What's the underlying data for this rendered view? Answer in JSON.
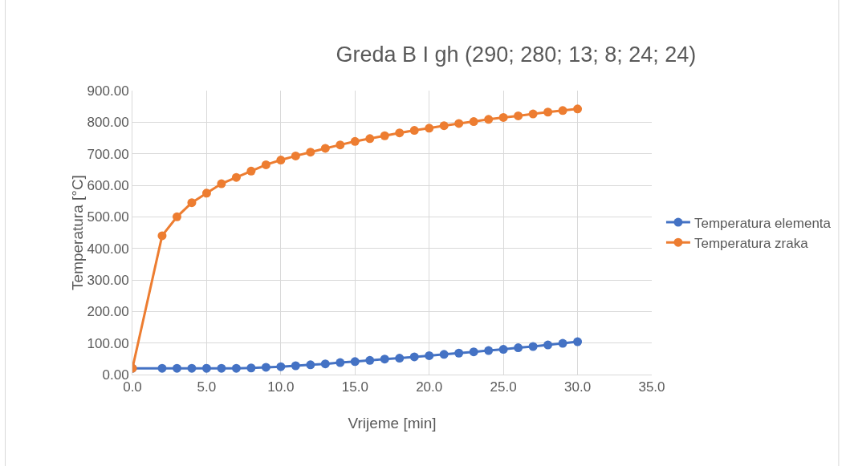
{
  "chart_data": {
    "type": "line",
    "title": "Greda B I gh (290; 280; 13; 8; 24; 24)",
    "xlabel": "Vrijeme [min]",
    "ylabel": "Temperatura [°C]",
    "x": [
      0,
      2,
      3,
      4,
      5,
      6,
      7,
      8,
      9,
      10,
      11,
      12,
      13,
      14,
      15,
      16,
      17,
      18,
      19,
      20,
      21,
      22,
      23,
      24,
      25,
      26,
      27,
      28,
      29,
      30
    ],
    "series": [
      {
        "name": "Temperatura elementa",
        "color": "#4472c4",
        "values": [
          20,
          20,
          20,
          20,
          20,
          20,
          20,
          21,
          23,
          25,
          28,
          31,
          34,
          38,
          41,
          45,
          49,
          52,
          56,
          60,
          64,
          68,
          72,
          76,
          80,
          85,
          89,
          94,
          99,
          104
        ]
      },
      {
        "name": "Temperatura zraka",
        "color": "#ed7d31",
        "values": [
          20,
          440,
          500,
          545,
          575,
          605,
          625,
          645,
          665,
          680,
          693,
          705,
          717,
          728,
          739,
          748,
          757,
          766,
          774,
          781,
          789,
          796,
          802,
          809,
          815,
          820,
          826,
          832,
          837,
          842
        ]
      }
    ],
    "xlim": [
      0,
      35
    ],
    "xticks": [
      {
        "value": 0,
        "label": "0.0"
      },
      {
        "value": 5,
        "label": "5.0"
      },
      {
        "value": 10,
        "label": "10.0"
      },
      {
        "value": 15,
        "label": "15.0"
      },
      {
        "value": 20,
        "label": "20.0"
      },
      {
        "value": 25,
        "label": "25.0"
      },
      {
        "value": 30,
        "label": "30.0"
      },
      {
        "value": 35,
        "label": "35.0"
      }
    ],
    "ylim": [
      0,
      900
    ],
    "yticks": [
      {
        "value": 0,
        "label": "0.00"
      },
      {
        "value": 100,
        "label": "100.00"
      },
      {
        "value": 200,
        "label": "200.00"
      },
      {
        "value": 300,
        "label": "300.00"
      },
      {
        "value": 400,
        "label": "400.00"
      },
      {
        "value": 500,
        "label": "500.00"
      },
      {
        "value": 600,
        "label": "600.00"
      },
      {
        "value": 700,
        "label": "700.00"
      },
      {
        "value": 800,
        "label": "800.00"
      },
      {
        "value": 900,
        "label": "900.00"
      }
    ],
    "grid": true,
    "legend": "right",
    "marker": "circle",
    "line_style": "solid"
  }
}
